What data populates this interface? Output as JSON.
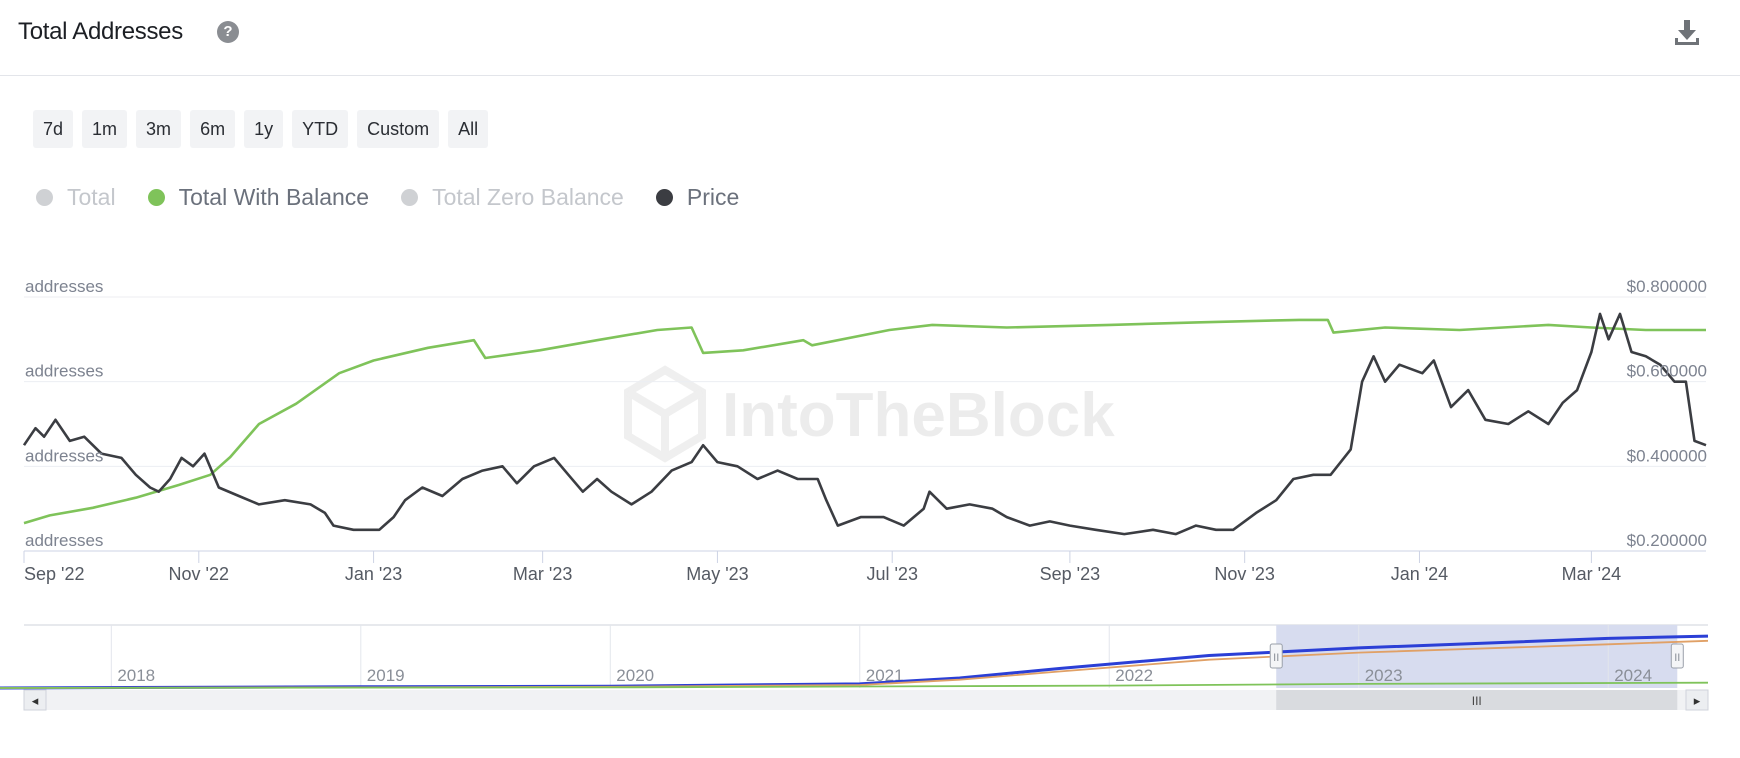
{
  "header": {
    "title": "Total Addresses",
    "help_icon": "question-circle-icon",
    "help_glyph": "?",
    "download_icon": "download-icon"
  },
  "ranges": [
    "7d",
    "1m",
    "3m",
    "6m",
    "1y",
    "YTD",
    "Custom",
    "All"
  ],
  "legend": [
    {
      "label": "Total",
      "color": "#cfd1d4",
      "active": false
    },
    {
      "label": "Total With Balance",
      "color": "#7fc35a",
      "active": true
    },
    {
      "label": "Total Zero Balance",
      "color": "#cfd1d4",
      "active": false
    },
    {
      "label": "Price",
      "color": "#3b3d42",
      "active": true
    }
  ],
  "watermark": "IntoTheBlock",
  "navigator_labels": {
    "scroll_left": "◂",
    "scroll_right": "▸",
    "scroll_grip": "III",
    "handle_grip": "II"
  },
  "chart_data": {
    "type": "line",
    "x_start": "2022-09-01",
    "x_end": "2024-04-10",
    "x_ticks": [
      {
        "date": "2022-09-01",
        "label": "Sep '22"
      },
      {
        "date": "2022-11-01",
        "label": "Nov '22"
      },
      {
        "date": "2023-01-01",
        "label": "Jan '23"
      },
      {
        "date": "2023-03-01",
        "label": "Mar '23"
      },
      {
        "date": "2023-05-01",
        "label": "May '23"
      },
      {
        "date": "2023-07-01",
        "label": "Jul '23"
      },
      {
        "date": "2023-09-01",
        "label": "Sep '23"
      },
      {
        "date": "2023-11-01",
        "label": "Nov '23"
      },
      {
        "date": "2024-01-01",
        "label": "Jan '24"
      },
      {
        "date": "2024-03-01",
        "label": "Mar '24"
      }
    ],
    "left_axis": {
      "labels": [
        "addresses",
        "addresses",
        "addresses",
        "addresses"
      ]
    },
    "right_axis": {
      "ylim": [
        0.2,
        0.8
      ],
      "ticks": [
        0.8,
        0.6,
        0.4,
        0.2
      ],
      "labels": [
        "$0.800000",
        "$0.600000",
        "$0.400000",
        "$0.200000"
      ]
    },
    "series": [
      {
        "name": "Total With Balance",
        "color": "#7fc35a",
        "axis": "left-relative",
        "ylim": [
          0,
          1
        ],
        "points": [
          [
            "2022-09-01",
            0.11
          ],
          [
            "2022-09-10",
            0.14
          ],
          [
            "2022-09-25",
            0.17
          ],
          [
            "2022-10-10",
            0.21
          ],
          [
            "2022-10-25",
            0.26
          ],
          [
            "2022-11-05",
            0.3
          ],
          [
            "2022-11-12",
            0.37
          ],
          [
            "2022-11-22",
            0.5
          ],
          [
            "2022-12-05",
            0.58
          ],
          [
            "2022-12-20",
            0.7
          ],
          [
            "2023-01-01",
            0.75
          ],
          [
            "2023-01-20",
            0.8
          ],
          [
            "2023-02-05",
            0.83
          ],
          [
            "2023-02-09",
            0.76
          ],
          [
            "2023-02-28",
            0.79
          ],
          [
            "2023-03-20",
            0.83
          ],
          [
            "2023-04-10",
            0.87
          ],
          [
            "2023-04-22",
            0.88
          ],
          [
            "2023-04-26",
            0.78
          ],
          [
            "2023-05-10",
            0.79
          ],
          [
            "2023-05-31",
            0.83
          ],
          [
            "2023-06-03",
            0.81
          ],
          [
            "2023-06-30",
            0.87
          ],
          [
            "2023-07-15",
            0.89
          ],
          [
            "2023-08-10",
            0.88
          ],
          [
            "2023-09-15",
            0.89
          ],
          [
            "2023-10-15",
            0.9
          ],
          [
            "2023-11-20",
            0.91
          ],
          [
            "2023-11-30",
            0.91
          ],
          [
            "2023-12-02",
            0.86
          ],
          [
            "2023-12-20",
            0.88
          ],
          [
            "2024-01-15",
            0.87
          ],
          [
            "2024-02-15",
            0.89
          ],
          [
            "2024-03-01",
            0.88
          ],
          [
            "2024-03-20",
            0.87
          ],
          [
            "2024-04-10",
            0.87
          ]
        ]
      },
      {
        "name": "Price",
        "color": "#3b3d42",
        "axis": "right",
        "points": [
          [
            "2022-09-01",
            0.45
          ],
          [
            "2022-09-05",
            0.49
          ],
          [
            "2022-09-08",
            0.47
          ],
          [
            "2022-09-12",
            0.51
          ],
          [
            "2022-09-17",
            0.46
          ],
          [
            "2022-09-22",
            0.47
          ],
          [
            "2022-09-28",
            0.43
          ],
          [
            "2022-10-05",
            0.42
          ],
          [
            "2022-10-10",
            0.38
          ],
          [
            "2022-10-15",
            0.35
          ],
          [
            "2022-10-18",
            0.34
          ],
          [
            "2022-10-22",
            0.37
          ],
          [
            "2022-10-26",
            0.42
          ],
          [
            "2022-10-30",
            0.4
          ],
          [
            "2022-11-03",
            0.43
          ],
          [
            "2022-11-08",
            0.35
          ],
          [
            "2022-11-15",
            0.33
          ],
          [
            "2022-11-22",
            0.31
          ],
          [
            "2022-12-01",
            0.32
          ],
          [
            "2022-12-10",
            0.31
          ],
          [
            "2022-12-15",
            0.29
          ],
          [
            "2022-12-18",
            0.26
          ],
          [
            "2022-12-25",
            0.25
          ],
          [
            "2023-01-03",
            0.25
          ],
          [
            "2023-01-08",
            0.28
          ],
          [
            "2023-01-12",
            0.32
          ],
          [
            "2023-01-18",
            0.35
          ],
          [
            "2023-01-25",
            0.33
          ],
          [
            "2023-02-01",
            0.37
          ],
          [
            "2023-02-08",
            0.39
          ],
          [
            "2023-02-15",
            0.4
          ],
          [
            "2023-02-20",
            0.36
          ],
          [
            "2023-02-26",
            0.4
          ],
          [
            "2023-03-05",
            0.42
          ],
          [
            "2023-03-10",
            0.38
          ],
          [
            "2023-03-15",
            0.34
          ],
          [
            "2023-03-20",
            0.37
          ],
          [
            "2023-03-25",
            0.34
          ],
          [
            "2023-04-01",
            0.31
          ],
          [
            "2023-04-08",
            0.34
          ],
          [
            "2023-04-15",
            0.39
          ],
          [
            "2023-04-22",
            0.41
          ],
          [
            "2023-04-26",
            0.45
          ],
          [
            "2023-05-01",
            0.41
          ],
          [
            "2023-05-08",
            0.4
          ],
          [
            "2023-05-15",
            0.37
          ],
          [
            "2023-05-22",
            0.39
          ],
          [
            "2023-05-29",
            0.37
          ],
          [
            "2023-06-05",
            0.37
          ],
          [
            "2023-06-08",
            0.32
          ],
          [
            "2023-06-12",
            0.26
          ],
          [
            "2023-06-20",
            0.28
          ],
          [
            "2023-06-28",
            0.28
          ],
          [
            "2023-07-05",
            0.26
          ],
          [
            "2023-07-12",
            0.3
          ],
          [
            "2023-07-14",
            0.34
          ],
          [
            "2023-07-20",
            0.3
          ],
          [
            "2023-07-28",
            0.31
          ],
          [
            "2023-08-05",
            0.3
          ],
          [
            "2023-08-10",
            0.28
          ],
          [
            "2023-08-18",
            0.26
          ],
          [
            "2023-08-25",
            0.27
          ],
          [
            "2023-09-01",
            0.26
          ],
          [
            "2023-09-10",
            0.25
          ],
          [
            "2023-09-20",
            0.24
          ],
          [
            "2023-09-30",
            0.25
          ],
          [
            "2023-10-08",
            0.24
          ],
          [
            "2023-10-15",
            0.26
          ],
          [
            "2023-10-22",
            0.25
          ],
          [
            "2023-10-28",
            0.25
          ],
          [
            "2023-11-05",
            0.29
          ],
          [
            "2023-11-12",
            0.32
          ],
          [
            "2023-11-18",
            0.37
          ],
          [
            "2023-11-25",
            0.38
          ],
          [
            "2023-12-01",
            0.38
          ],
          [
            "2023-12-08",
            0.44
          ],
          [
            "2023-12-12",
            0.6
          ],
          [
            "2023-12-16",
            0.66
          ],
          [
            "2023-12-20",
            0.6
          ],
          [
            "2023-12-25",
            0.64
          ],
          [
            "2024-01-02",
            0.62
          ],
          [
            "2024-01-06",
            0.65
          ],
          [
            "2024-01-12",
            0.54
          ],
          [
            "2024-01-18",
            0.58
          ],
          [
            "2024-01-24",
            0.51
          ],
          [
            "2024-02-01",
            0.5
          ],
          [
            "2024-02-08",
            0.53
          ],
          [
            "2024-02-15",
            0.5
          ],
          [
            "2024-02-20",
            0.55
          ],
          [
            "2024-02-25",
            0.58
          ],
          [
            "2024-03-01",
            0.67
          ],
          [
            "2024-03-04",
            0.76
          ],
          [
            "2024-03-07",
            0.7
          ],
          [
            "2024-03-11",
            0.76
          ],
          [
            "2024-03-15",
            0.67
          ],
          [
            "2024-03-20",
            0.66
          ],
          [
            "2024-03-25",
            0.64
          ],
          [
            "2024-03-30",
            0.6
          ],
          [
            "2024-04-03",
            0.6
          ],
          [
            "2024-04-06",
            0.46
          ],
          [
            "2024-04-10",
            0.45
          ]
        ]
      }
    ]
  },
  "navigator": {
    "x_labels": [
      "2018",
      "2019",
      "2020",
      "2021",
      "2022",
      "2023",
      "2024"
    ],
    "series": [
      {
        "name": "Total",
        "color": "#2b3fd6",
        "ylim": [
          0,
          1
        ],
        "points": [
          [
            2017.5,
            0.0
          ],
          [
            2019.0,
            0.02
          ],
          [
            2020.0,
            0.03
          ],
          [
            2021.0,
            0.07
          ],
          [
            2021.4,
            0.17
          ],
          [
            2021.8,
            0.33
          ],
          [
            2022.4,
            0.55
          ],
          [
            2023.0,
            0.68
          ],
          [
            2024.0,
            0.84
          ],
          [
            2024.4,
            0.88
          ]
        ]
      },
      {
        "name": "Total Zero Balance",
        "color": "#e0a066",
        "ylim": [
          0,
          1
        ],
        "points": [
          [
            2017.5,
            0.0
          ],
          [
            2019.0,
            0.01
          ],
          [
            2020.0,
            0.02
          ],
          [
            2021.0,
            0.05
          ],
          [
            2021.4,
            0.14
          ],
          [
            2021.8,
            0.28
          ],
          [
            2022.4,
            0.48
          ],
          [
            2023.0,
            0.6
          ],
          [
            2024.0,
            0.74
          ],
          [
            2024.4,
            0.8
          ]
        ]
      },
      {
        "name": "Total With Balance",
        "color": "#7fc35a",
        "ylim": [
          0,
          1
        ],
        "points": [
          [
            2017.5,
            0.0
          ],
          [
            2020.0,
            0.01
          ],
          [
            2022.0,
            0.04
          ],
          [
            2023.0,
            0.07
          ],
          [
            2024.4,
            0.09
          ]
        ]
      }
    ],
    "selected_range": [
      "2022-09-01",
      "2024-04-10"
    ]
  }
}
